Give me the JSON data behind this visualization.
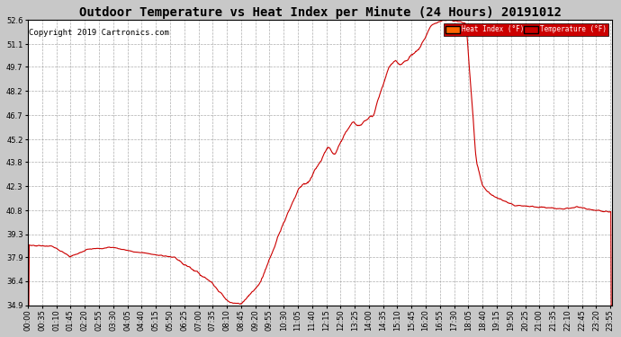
{
  "title": "Outdoor Temperature vs Heat Index per Minute (24 Hours) 20191012",
  "copyright": "Copyright 2019 Cartronics.com",
  "legend_labels": [
    "Heat Index (°F)",
    "Temperature (°F)"
  ],
  "legend_bg_colors": [
    "#ff6600",
    "#cc0000"
  ],
  "legend_text_color": "#ffffff",
  "line_color": "#cc0000",
  "background_color": "#c8c8c8",
  "plot_bg_color": "#ffffff",
  "grid_color": "#999999",
  "ylim": [
    34.9,
    52.6
  ],
  "yticks": [
    34.9,
    36.4,
    37.9,
    39.3,
    40.8,
    42.3,
    43.8,
    45.2,
    46.7,
    48.2,
    49.7,
    51.1,
    52.6
  ],
  "title_fontsize": 10,
  "copyright_fontsize": 6.5,
  "tick_fontsize": 6,
  "ylabel_color": "#000000"
}
